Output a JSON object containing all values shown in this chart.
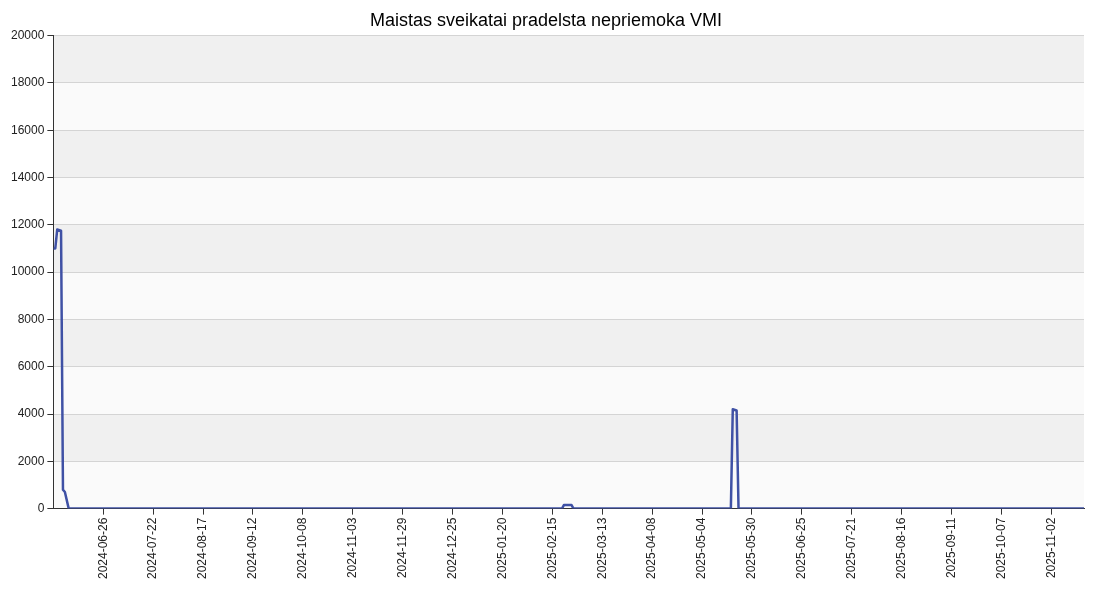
{
  "chart_data": {
    "type": "line",
    "title": "Maistas sveikatai pradelsta nepriemoka VMI",
    "x": [
      "2024-05-31",
      "2024-06-01",
      "2024-06-02",
      "2024-06-04",
      "2024-06-05",
      "2024-06-06",
      "2024-06-08",
      "2025-02-20",
      "2025-02-21",
      "2025-02-25",
      "2025-02-26",
      "2025-05-19",
      "2025-05-20",
      "2025-05-22",
      "2025-05-23",
      "2025-11-19"
    ],
    "series": [
      {
        "color": "#3f51a5",
        "values": [
          11000,
          11000,
          11800,
          11750,
          800,
          700,
          0,
          0,
          150,
          150,
          0,
          0,
          4200,
          4150,
          0,
          0
        ]
      }
    ],
    "xlim": [
      "2024-05-31",
      "2025-11-19"
    ],
    "xticks": [
      "2024-06-26",
      "2024-07-22",
      "2024-08-17",
      "2024-09-12",
      "2024-10-08",
      "2024-11-03",
      "2024-11-29",
      "2024-12-25",
      "2025-01-20",
      "2025-02-15",
      "2025-03-13",
      "2025-04-08",
      "2025-05-04",
      "2025-05-30",
      "2025-06-25",
      "2025-07-21",
      "2025-08-16",
      "2025-09-11",
      "2025-10-07",
      "2025-11-02"
    ],
    "ylim": [
      0,
      20000
    ],
    "yticks": [
      0,
      2000,
      4000,
      6000,
      8000,
      10000,
      12000,
      14000,
      16000,
      18000,
      20000
    ],
    "grid": "y",
    "legend": false,
    "marker": "none",
    "line_style": "solid"
  }
}
